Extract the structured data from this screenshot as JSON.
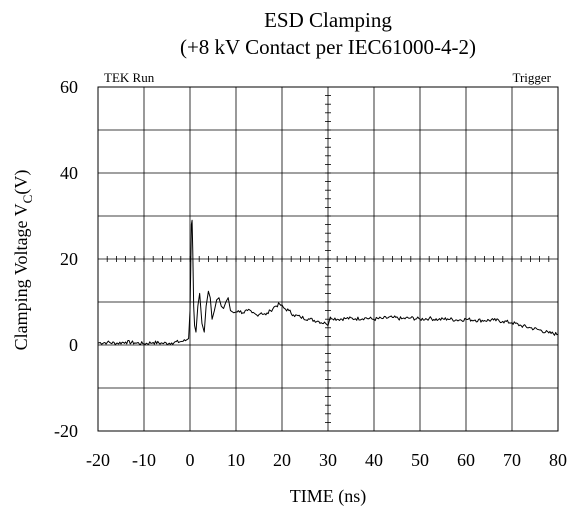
{
  "chart_data": {
    "type": "line",
    "title": "ESD Clamping",
    "subtitle": "(+8 kV Contact per IEC61000-4-2)",
    "xlabel": "TIME  (ns)",
    "ylabel_main": "Clamping Voltage V",
    "ylabel_sub": "C",
    "ylabel_unit": "(V)",
    "xlim": [
      -20,
      80
    ],
    "ylim": [
      -20,
      60
    ],
    "x_ticks": [
      -20,
      -10,
      0,
      10,
      20,
      30,
      40,
      50,
      60,
      70,
      80
    ],
    "y_ticks": [
      -20,
      0,
      20,
      40,
      60
    ],
    "x_tick_labels": [
      "-20",
      "-10",
      "0",
      "10",
      "20",
      "30",
      "40",
      "50",
      "60",
      "70",
      "80"
    ],
    "y_tick_labels": [
      "-20",
      "0",
      "20",
      "40",
      "60"
    ],
    "grid": true,
    "legend": "none",
    "annotations": {
      "top_left": "TEK Run",
      "top_right": "Trigger"
    },
    "series": [
      {
        "color": "#000000",
        "x": [
          -20,
          -18,
          -16,
          -14,
          -12,
          -10,
          -8,
          -6,
          -4,
          -2,
          -1,
          -0.3,
          0,
          0.15,
          0.3,
          0.45,
          0.6,
          0.8,
          1.0,
          1.3,
          1.7,
          2.1,
          2.6,
          3.1,
          3.5,
          4.0,
          4.4,
          4.8,
          5.3,
          5.8,
          6.3,
          6.8,
          7.3,
          7.8,
          8.3,
          8.8,
          9.5,
          10.5,
          11.5,
          12.5,
          13.5,
          14.5,
          15.5,
          16.5,
          17.5,
          18.5,
          19.5,
          20.5,
          21.5,
          22.5,
          24,
          26,
          28,
          29.5,
          30,
          30.5,
          32,
          34,
          36,
          38,
          40,
          42,
          44,
          46,
          48,
          50,
          52,
          54,
          56,
          58,
          60,
          62,
          64,
          66,
          68,
          70,
          72,
          74,
          76,
          78,
          80
        ],
        "y": [
          0.5,
          0.6,
          0.4,
          0.7,
          0.5,
          0.3,
          0.6,
          0.4,
          0.5,
          0.8,
          1.0,
          1.5,
          8,
          17,
          28,
          29,
          22,
          9,
          4.5,
          3,
          9,
          12,
          5,
          3,
          9,
          12.5,
          11,
          6,
          8,
          10.5,
          11,
          9,
          8.5,
          10,
          11,
          8,
          7.5,
          8,
          7.5,
          8,
          7.5,
          7,
          7.5,
          7,
          8,
          9,
          9.5,
          8.5,
          8,
          7,
          6.5,
          6,
          5.5,
          5,
          4.5,
          6.5,
          6,
          6.2,
          6.1,
          6.3,
          6.0,
          6.2,
          6.4,
          6.1,
          6.3,
          6.0,
          6.2,
          5.9,
          6.1,
          5.8,
          6.0,
          5.8,
          5.7,
          5.8,
          5.5,
          5.2,
          4.5,
          4,
          3.5,
          2.8,
          2.5
        ]
      }
    ]
  }
}
